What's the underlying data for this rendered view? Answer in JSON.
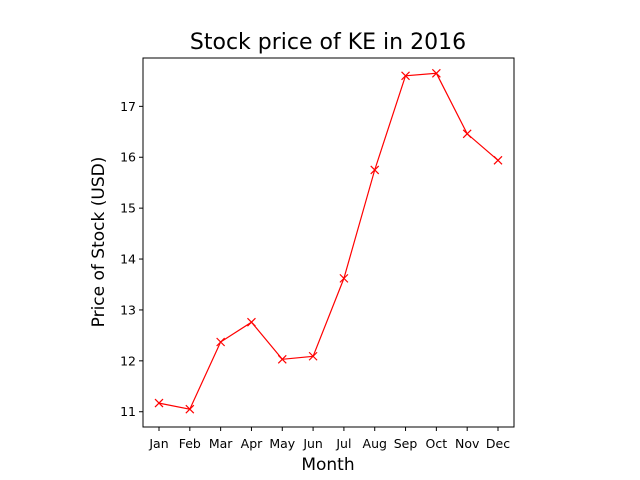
{
  "chart_data": {
    "type": "line",
    "title": "Stock price of KE in 2016",
    "xlabel": "Month",
    "ylabel": "Price of Stock (USD)",
    "categories": [
      "Jan",
      "Feb",
      "Mar",
      "Apr",
      "May",
      "Jun",
      "Jul",
      "Aug",
      "Sep",
      "Oct",
      "Nov",
      "Dec"
    ],
    "values": [
      11.17,
      11.05,
      12.37,
      12.76,
      12.03,
      12.09,
      13.62,
      15.75,
      17.6,
      17.65,
      16.46,
      15.94
    ],
    "yticks": [
      11,
      12,
      13,
      14,
      15,
      16,
      17
    ],
    "ylim": [
      10.7,
      17.95
    ],
    "grid": false,
    "legend": "none",
    "marker": "x",
    "line_color": "#ff0000"
  }
}
